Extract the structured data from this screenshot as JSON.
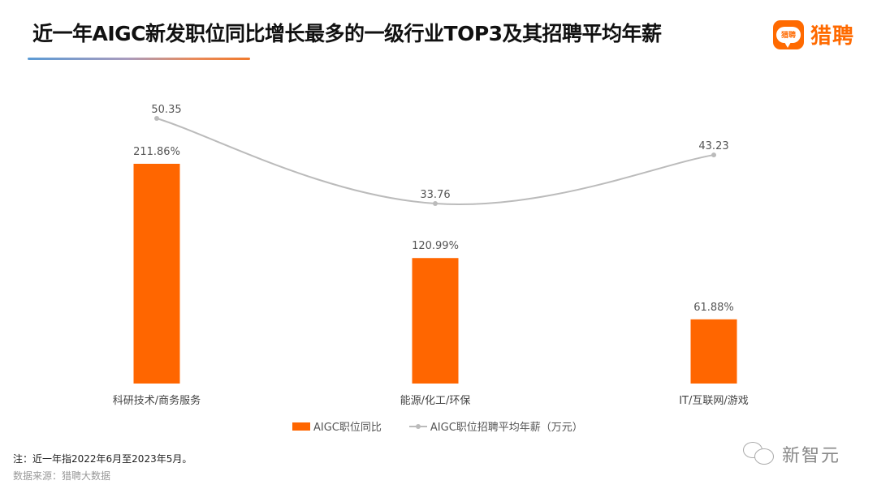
{
  "header": {
    "title": "近一年AIGC新发职位同比增长最多的一级行业TOP3及其招聘平均年薪",
    "logo_badge_text": "猎聘",
    "logo_text": "猎聘"
  },
  "colors": {
    "bar": "#ff6600",
    "line": "#bbbbbb",
    "brand": "#ff6a00"
  },
  "chart_data": {
    "type": "bar+line",
    "title": "近一年AIGC新发职位同比增长最多的一级行业TOP3及其招聘平均年薪",
    "categories": [
      "科研技术/商务服务",
      "能源/化工/环保",
      "IT/互联网/游戏"
    ],
    "series": [
      {
        "name": "AIGC职位同比",
        "type": "bar",
        "values": [
          211.86,
          120.99,
          61.88
        ],
        "labels": [
          "211.86%",
          "120.99%",
          "61.88%"
        ],
        "unit": "%"
      },
      {
        "name": "AIGC职位招聘平均年薪（万元）",
        "type": "line",
        "values": [
          50.35,
          33.76,
          43.23
        ],
        "labels": [
          "50.35",
          "33.76",
          "43.23"
        ],
        "unit": "万元"
      }
    ],
    "xlabel": "",
    "ylabel": "",
    "grid": false,
    "legend_position": "bottom"
  },
  "legend": {
    "bar_label": "AIGC职位同比",
    "line_label": "AIGC职位招聘平均年薪（万元）"
  },
  "footer": {
    "note": "注：近一年指2022年6月至2023年5月。",
    "source": "数据来源：猎聘大数据"
  },
  "watermark": {
    "text": "新智元"
  }
}
